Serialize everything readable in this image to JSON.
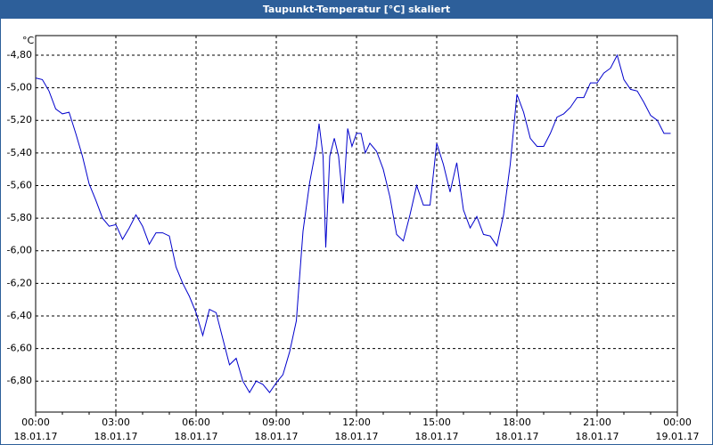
{
  "chart_data": {
    "type": "line",
    "title": "Taupunkt-Temperatur [°C] skaliert",
    "y_unit": "°C",
    "color": "#0000cc",
    "grid": true,
    "ylim": [
      -6.99,
      -4.68
    ],
    "yticks": [
      {
        "value": -6.8,
        "label": "-6,80"
      },
      {
        "value": -6.6,
        "label": "-6,60"
      },
      {
        "value": -6.4,
        "label": "-6,40"
      },
      {
        "value": -6.2,
        "label": "-6,20"
      },
      {
        "value": -6.0,
        "label": "-6,00"
      },
      {
        "value": -5.8,
        "label": "-5,80"
      },
      {
        "value": -5.6,
        "label": "-5,60"
      },
      {
        "value": -5.4,
        "label": "-5,40"
      },
      {
        "value": -5.2,
        "label": "-5,20"
      },
      {
        "value": -5.0,
        "label": "-5,00"
      },
      {
        "value": -4.8,
        "label": "-4,80"
      }
    ],
    "xlim": [
      0,
      24
    ],
    "xticks": [
      {
        "value": 0,
        "label": "00:00",
        "date": "18.01.17"
      },
      {
        "value": 3,
        "label": "03:00",
        "date": "18.01.17"
      },
      {
        "value": 6,
        "label": "06:00",
        "date": "18.01.17"
      },
      {
        "value": 9,
        "label": "09:00",
        "date": "18.01.17"
      },
      {
        "value": 12,
        "label": "12:00",
        "date": "18.01.17"
      },
      {
        "value": 15,
        "label": "15:00",
        "date": "18.01.17"
      },
      {
        "value": 18,
        "label": "18:00",
        "date": "18.01.17"
      },
      {
        "value": 21,
        "label": "21:00",
        "date": "18.01.17"
      },
      {
        "value": 24,
        "label": "00:00",
        "date": "19.01.17"
      }
    ],
    "x": [
      0,
      0.25,
      0.5,
      0.75,
      1,
      1.25,
      1.5,
      1.75,
      2,
      2.25,
      2.5,
      2.75,
      3,
      3.25,
      3.5,
      3.75,
      4,
      4.25,
      4.5,
      4.75,
      5,
      5.25,
      5.5,
      5.75,
      6,
      6.25,
      6.5,
      6.75,
      7,
      7.25,
      7.5,
      7.75,
      8,
      8.25,
      8.5,
      8.75,
      9,
      9.25,
      9.5,
      9.75,
      10,
      10.25,
      10.5,
      10.6,
      10.75,
      10.85,
      11,
      11.17,
      11.33,
      11.5,
      11.67,
      11.83,
      12,
      12.17,
      12.33,
      12.5,
      12.75,
      13,
      13.25,
      13.5,
      13.75,
      14,
      14.25,
      14.5,
      14.75,
      15,
      15.25,
      15.5,
      15.75,
      16,
      16.25,
      16.5,
      16.75,
      17,
      17.25,
      17.5,
      17.75,
      18,
      18.25,
      18.5,
      18.75,
      19,
      19.25,
      19.5,
      19.75,
      20,
      20.25,
      20.5,
      20.75,
      21,
      21.25,
      21.5,
      21.75,
      22,
      22.25,
      22.5,
      22.75,
      23,
      23.25,
      23.5,
      23.75
    ],
    "values": [
      -4.94,
      -4.95,
      -5.02,
      -5.13,
      -5.16,
      -5.15,
      -5.28,
      -5.42,
      -5.59,
      -5.69,
      -5.8,
      -5.85,
      -5.84,
      -5.93,
      -5.86,
      -5.78,
      -5.85,
      -5.96,
      -5.89,
      -5.89,
      -5.91,
      -6.1,
      -6.2,
      -6.28,
      -6.38,
      -6.52,
      -6.36,
      -6.38,
      -6.54,
      -6.7,
      -6.66,
      -6.8,
      -6.87,
      -6.8,
      -6.82,
      -6.87,
      -6.81,
      -6.76,
      -6.62,
      -6.43,
      -5.88,
      -5.58,
      -5.36,
      -5.22,
      -5.42,
      -5.98,
      -5.42,
      -5.31,
      -5.42,
      -5.71,
      -5.25,
      -5.36,
      -5.28,
      -5.28,
      -5.4,
      -5.34,
      -5.39,
      -5.5,
      -5.67,
      -5.9,
      -5.94,
      -5.78,
      -5.6,
      -5.72,
      -5.72,
      -5.34,
      -5.47,
      -5.64,
      -5.46,
      -5.75,
      -5.86,
      -5.79,
      -5.9,
      -5.91,
      -5.97,
      -5.78,
      -5.47,
      -5.04,
      -5.15,
      -5.31,
      -5.36,
      -5.36,
      -5.28,
      -5.18,
      -5.16,
      -5.12,
      -5.06,
      -5.06,
      -4.97,
      -4.97,
      -4.91,
      -4.88,
      -4.8,
      -4.95,
      -5.01,
      -5.02,
      -5.09,
      -5.17,
      -5.2,
      -5.28,
      -5.28
    ]
  }
}
